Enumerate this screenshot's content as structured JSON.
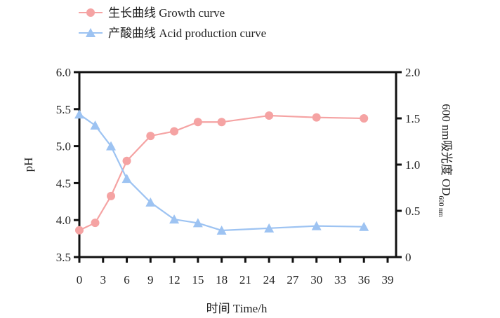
{
  "chart_data": {
    "type": "line",
    "legend": {
      "placement": "top-left"
    },
    "xlabel": "时间  Time/h",
    "ylabel_left": "pH",
    "ylabel_right_main": "600 nm吸光度  OD",
    "ylabel_right_sub": "600 nm",
    "xlim": [
      0,
      39
    ],
    "ylim_left": [
      3.5,
      6.0
    ],
    "ylim_right": [
      0,
      2.0
    ],
    "x_ticks": [
      "0",
      "3",
      "6",
      "9",
      "12",
      "15",
      "18",
      "21",
      "24",
      "27",
      "30",
      "33",
      "36",
      "39"
    ],
    "y_left_ticks": [
      "3.5",
      "4.0",
      "4.5",
      "5.0",
      "5.5",
      "6.0"
    ],
    "y_right_ticks": [
      "0",
      "0.5",
      "1.0",
      "1.5",
      "2.0"
    ],
    "grid": false,
    "series": [
      {
        "name": "生长曲线  Growth curve",
        "axis": "right",
        "marker": "circle",
        "color": "#f5a3a3",
        "x": [
          0,
          2,
          4,
          6,
          9,
          12,
          15,
          18,
          24,
          30,
          36
        ],
        "y": [
          0.29,
          0.37,
          0.66,
          1.04,
          1.31,
          1.36,
          1.46,
          1.46,
          1.53,
          1.51,
          1.5
        ]
      },
      {
        "name": "产酸曲线  Acid production curve",
        "axis": "left",
        "marker": "triangle",
        "color": "#9dc3f2",
        "x": [
          0,
          2,
          4,
          6,
          9,
          12,
          15,
          18,
          24,
          30,
          36
        ],
        "y": [
          5.43,
          5.28,
          5.0,
          4.56,
          4.24,
          4.01,
          3.96,
          3.86,
          3.89,
          3.92,
          3.91
        ]
      }
    ]
  }
}
